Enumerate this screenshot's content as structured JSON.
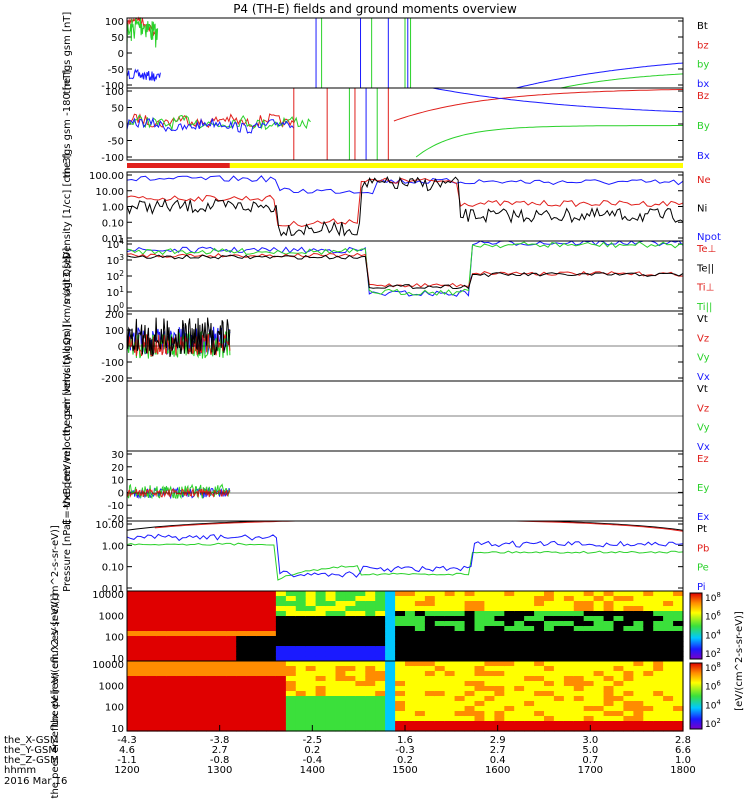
{
  "title": "P4 (TH-E) fields and ground moments overview",
  "colors": {
    "black": "#000000",
    "red": "#e0201c",
    "green": "#2ad12a",
    "blue": "#1a1aff",
    "yellow": "#ffff00"
  },
  "chart_data": [
    {
      "type": "line",
      "ylabel": "the fgs gsm [nT]",
      "ylim": [
        -100,
        100
      ],
      "yticks": [
        "100",
        "50",
        "0",
        "-50",
        "-100"
      ],
      "legend": [
        {
          "text": "Bt",
          "color": "black"
        },
        {
          "text": "bz",
          "color": "red"
        },
        {
          "text": "by",
          "color": "green"
        },
        {
          "text": "bx",
          "color": "blue"
        }
      ]
    },
    {
      "type": "line",
      "ylabel": "the fgs gsm -180 [nT]",
      "ylim": [
        -120,
        120
      ],
      "yticks": [
        "100",
        "50",
        "0",
        "-50",
        "-100"
      ],
      "legend": [
        {
          "text": "Bz",
          "color": "red"
        },
        {
          "text": "By",
          "color": "green"
        },
        {
          "text": "Bx",
          "color": "blue"
        }
      ]
    },
    {
      "type": "line",
      "ylabel": "Density [1/cc] [cm-3]",
      "log": true,
      "ylim": [
        0.01,
        100
      ],
      "yticks": [
        "100.00",
        "10.00",
        "1.00",
        "0.10",
        "0.01"
      ],
      "legend": [
        {
          "text": "Ne",
          "color": "red"
        },
        {
          "text": "Ni",
          "color": "black"
        },
        {
          "text": "Npot",
          "color": "blue"
        }
      ]
    },
    {
      "type": "line",
      "ylabel": "magt3 [eV]",
      "log": true,
      "ylim": [
        1,
        10000
      ],
      "yticks": [
        "10^4",
        "10^3",
        "10^2",
        "10^1",
        "10^0"
      ],
      "legend": [
        {
          "text": "Te⊥",
          "color": "red"
        },
        {
          "text": "Te||",
          "color": "black"
        },
        {
          "text": "Ti⊥",
          "color": "red"
        },
        {
          "text": "Ti||",
          "color": "green"
        }
      ]
    },
    {
      "type": "line",
      "ylabel": "the peir velocity gsm [km/s (All Qs)]",
      "ylim": [
        -200,
        200
      ],
      "yticks": [
        "200",
        "100",
        "0",
        "-100",
        "-200"
      ],
      "legend": [
        {
          "text": "Vt",
          "color": "black"
        },
        {
          "text": "Vz",
          "color": "red"
        },
        {
          "text": "Vy",
          "color": "green"
        },
        {
          "text": "Vx",
          "color": "blue"
        }
      ]
    },
    {
      "type": "line",
      "ylabel": "the peer velocity gsm [km/s (All Qs)]",
      "ylim": [
        -1,
        1
      ],
      "yticks": [],
      "legend": [
        {
          "text": "Vt",
          "color": "black"
        },
        {
          "text": "Vz",
          "color": "red"
        },
        {
          "text": "Vy",
          "color": "green"
        },
        {
          "text": "Vx",
          "color": "blue"
        }
      ]
    },
    {
      "type": "line",
      "ylabel": "E=-VxB [mV/m]",
      "ylim": [
        -20,
        30
      ],
      "yticks": [
        "30",
        "20",
        "10",
        "0",
        "-10",
        "-20"
      ],
      "legend": [
        {
          "text": "Ez",
          "color": "red"
        },
        {
          "text": "Ey",
          "color": "green"
        },
        {
          "text": "Ex",
          "color": "blue"
        }
      ]
    },
    {
      "type": "line",
      "ylabel": "Pressure [nPa]",
      "log": true,
      "ylim": [
        0.001,
        100
      ],
      "yticks": [
        "10.00",
        "1.00",
        "0.10",
        "0.01"
      ],
      "legend": [
        {
          "text": "Pt",
          "color": "black"
        },
        {
          "text": "Pb",
          "color": "red"
        },
        {
          "text": "Pe",
          "color": "green"
        },
        {
          "text": "Pi",
          "color": "blue"
        }
      ]
    },
    {
      "type": "heatmap",
      "ylabel": "the peir en eflux eV [eV/(cm^2-s-sr-eV)]",
      "log": true,
      "ylim": [
        5,
        25000
      ],
      "yticks": [
        "10000",
        "1000",
        "100",
        "10"
      ],
      "colorbar_ticks": [
        "10^8",
        "10^6",
        "10^4",
        "10^2"
      ],
      "colorbar_label": "[eV/(cm^2-s-sr-eV)]"
    },
    {
      "type": "heatmap",
      "ylabel": "the peer en eflux eV [eV/(cm^2-s-sr-eV)]",
      "log": true,
      "ylim": [
        5,
        25000
      ],
      "yticks": [
        "10000",
        "1000",
        "100",
        "10"
      ],
      "colorbar_ticks": [
        "10^8",
        "10^6",
        "10^4",
        "10^2"
      ],
      "colorbar_label": "[eV/(cm^2-s-sr-eV)]"
    }
  ],
  "xaxis": {
    "row_labels": [
      "the_X-GSM",
      "the_Y-GSM",
      "the_Z-GSM",
      "hhmm",
      "2016 Mar 16"
    ],
    "columns": [
      {
        "hhmm": "1200",
        "x": "-4.3",
        "y": "4.6",
        "z": "-1.1"
      },
      {
        "hhmm": "1300",
        "x": "-3.8",
        "y": "2.7",
        "z": "-0.8"
      },
      {
        "hhmm": "1400",
        "x": "-2.5",
        "y": "0.2",
        "z": "-0.4"
      },
      {
        "hhmm": "1500",
        "x": "1.6",
        "y": "-0.3",
        "z": "0.2"
      },
      {
        "hhmm": "1600",
        "x": "2.9",
        "y": "2.7",
        "z": "0.4"
      },
      {
        "hhmm": "1700",
        "x": "3.0",
        "y": "5.0",
        "z": "0.7"
      },
      {
        "hhmm": "1800",
        "x": "2.8",
        "y": "6.6",
        "z": "1.0"
      }
    ]
  },
  "colorbar_label": "[eV/(cm^2-s-sr-eV)]"
}
